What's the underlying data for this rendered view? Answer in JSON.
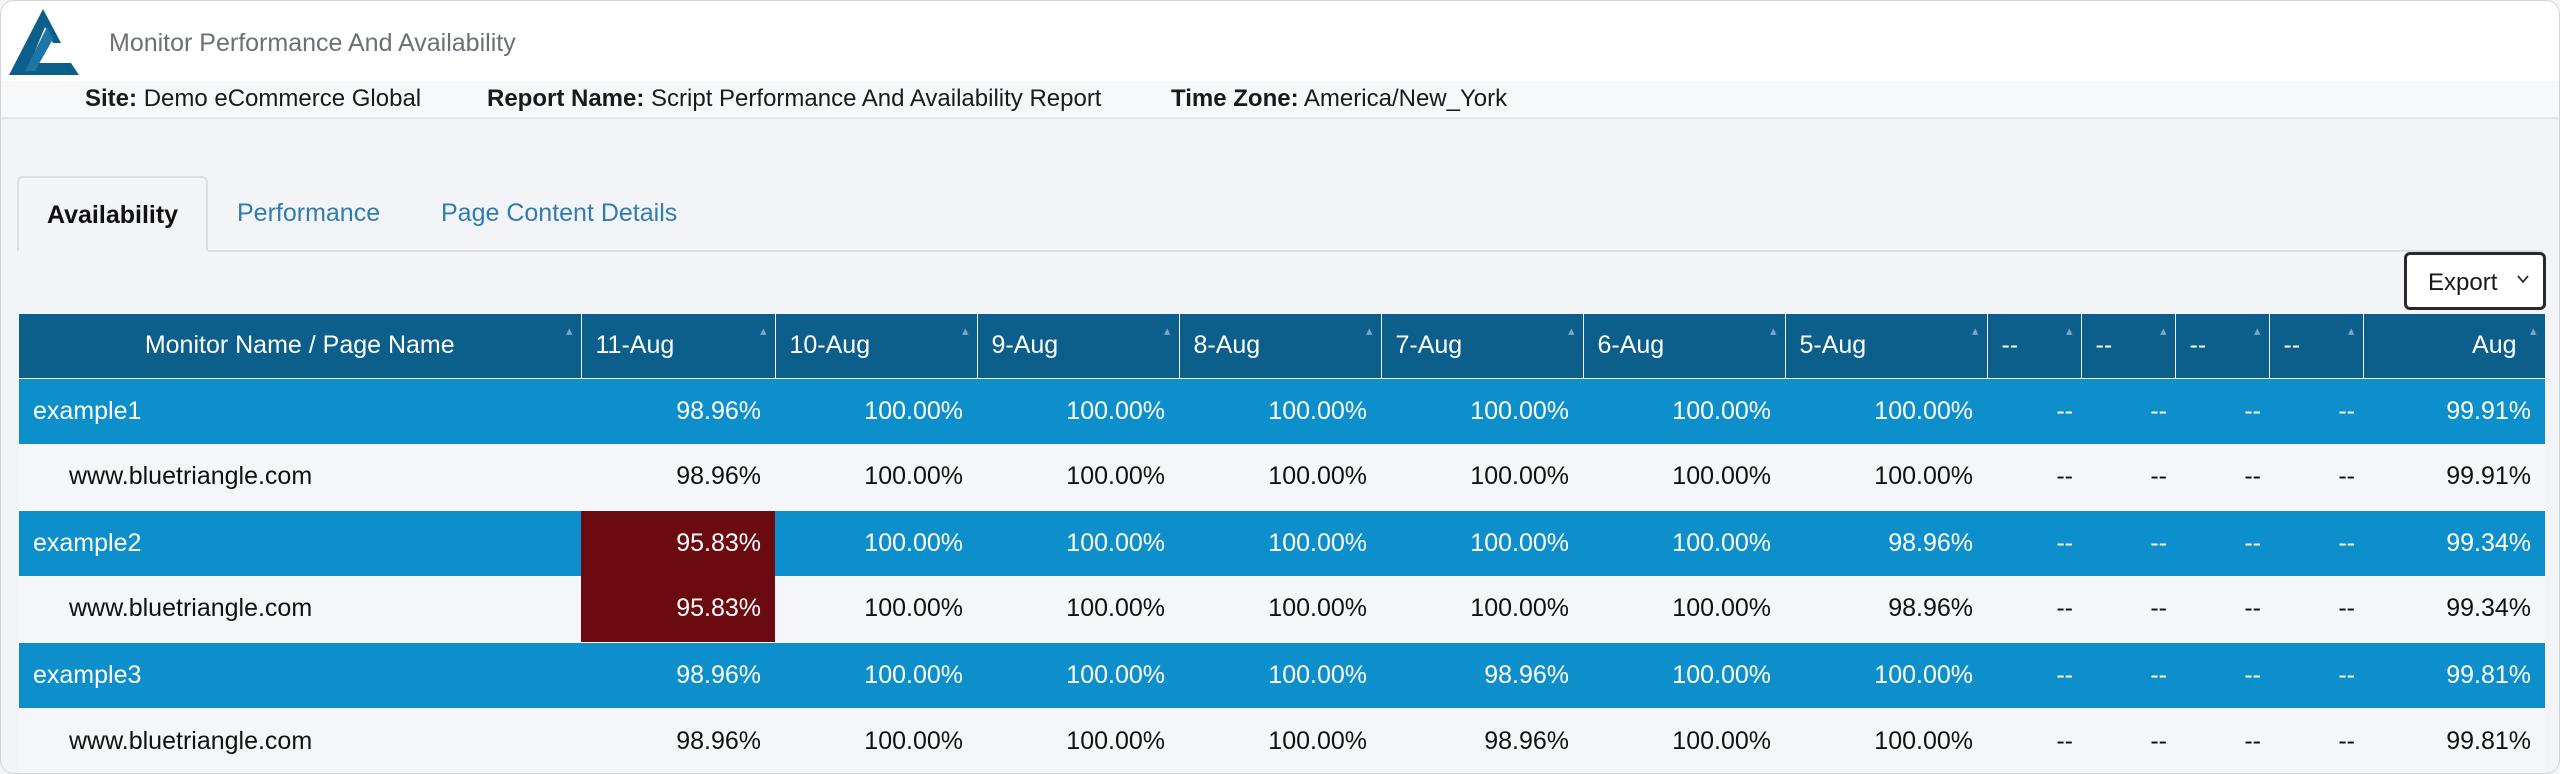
{
  "app": {
    "title": "Monitor Performance And Availability"
  },
  "info": {
    "site_label": "Site:",
    "site_value": "Demo eCommerce Global",
    "report_label": "Report Name:",
    "report_value": "Script Performance And Availability Report",
    "tz_label": "Time Zone:",
    "tz_value": "America/New_York"
  },
  "tabs": [
    {
      "label": "Availability",
      "active": true
    },
    {
      "label": "Performance",
      "active": false
    },
    {
      "label": "Page Content Details",
      "active": false
    }
  ],
  "export": {
    "label": "Export"
  },
  "table": {
    "columns": [
      "Monitor Name / Page Name",
      "11-Aug",
      "10-Aug",
      "9-Aug",
      "8-Aug",
      "7-Aug",
      "6-Aug",
      "5-Aug",
      "--",
      "--",
      "--",
      "--",
      "Aug"
    ],
    "rows": [
      {
        "type": "monitor",
        "cells": [
          "example1",
          "98.96%",
          "100.00%",
          "100.00%",
          "100.00%",
          "100.00%",
          "100.00%",
          "100.00%",
          "--",
          "--",
          "--",
          "--",
          "99.91%"
        ]
      },
      {
        "type": "page",
        "cells": [
          "www.bluetriangle.com",
          "98.96%",
          "100.00%",
          "100.00%",
          "100.00%",
          "100.00%",
          "100.00%",
          "100.00%",
          "--",
          "--",
          "--",
          "--",
          "99.91%"
        ]
      },
      {
        "type": "monitor",
        "cells": [
          "example2",
          "95.83%",
          "100.00%",
          "100.00%",
          "100.00%",
          "100.00%",
          "100.00%",
          "98.96%",
          "--",
          "--",
          "--",
          "--",
          "99.34%"
        ]
      },
      {
        "type": "page",
        "cells": [
          "www.bluetriangle.com",
          "95.83%",
          "100.00%",
          "100.00%",
          "100.00%",
          "100.00%",
          "100.00%",
          "98.96%",
          "--",
          "--",
          "--",
          "--",
          "99.34%"
        ]
      },
      {
        "type": "monitor",
        "cells": [
          "example3",
          "98.96%",
          "100.00%",
          "100.00%",
          "100.00%",
          "98.96%",
          "100.00%",
          "100.00%",
          "--",
          "--",
          "--",
          "--",
          "99.81%"
        ]
      },
      {
        "type": "page",
        "cells": [
          "www.bluetriangle.com",
          "98.96%",
          "100.00%",
          "100.00%",
          "100.00%",
          "98.96%",
          "100.00%",
          "100.00%",
          "--",
          "--",
          "--",
          "--",
          "99.81%"
        ]
      }
    ]
  },
  "colors": {
    "header_bg": "#0b5f8a",
    "monitor_row_bg": "#0d8fcb",
    "page_row_bg": "#f5f6f9",
    "low_availability_bg": "#6b0a0f",
    "tab_link": "#2f7cae",
    "logo": "#0b5f8a"
  },
  "icons": {
    "logo": "bluetriangle-logo",
    "export_chevron": "chevron-down-icon",
    "sort": "sort-icon"
  }
}
